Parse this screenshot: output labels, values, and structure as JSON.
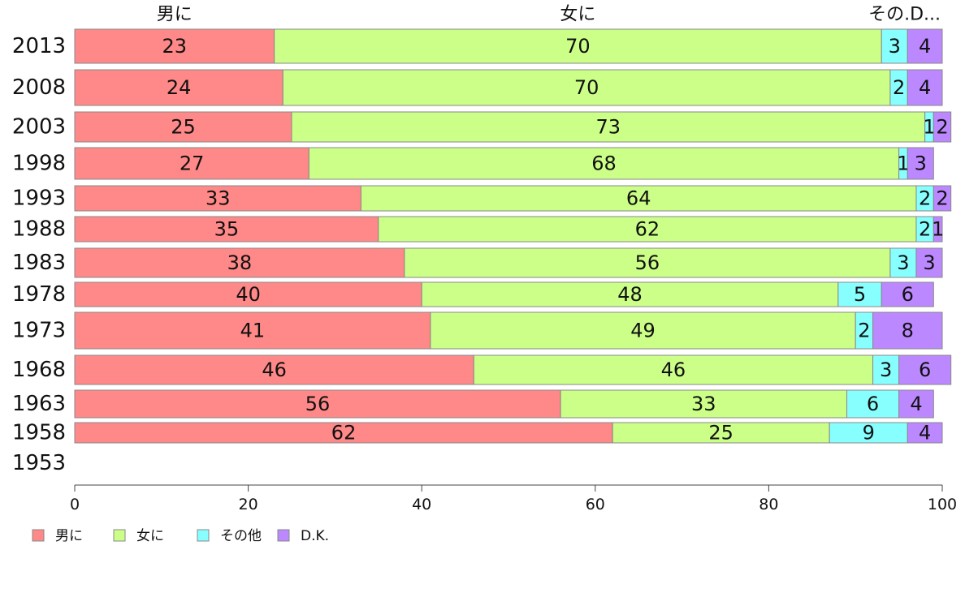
{
  "chart_data": {
    "type": "bar",
    "orientation": "horizontal",
    "stacked": true,
    "categories": [
      "2013",
      "2008",
      "2003",
      "1998",
      "1993",
      "1988",
      "1983",
      "1978",
      "1973",
      "1968",
      "1963",
      "1958",
      "1953"
    ],
    "series": [
      {
        "name": "男に",
        "color": "#ff8888",
        "values": [
          23,
          24,
          25,
          27,
          33,
          35,
          38,
          40,
          41,
          46,
          56,
          62,
          null
        ]
      },
      {
        "name": "女に",
        "color": "#ccff88",
        "values": [
          70,
          70,
          73,
          68,
          64,
          62,
          56,
          48,
          49,
          46,
          33,
          25,
          null
        ]
      },
      {
        "name": "その他",
        "color": "#88ffff",
        "values": [
          3,
          2,
          1,
          1,
          2,
          2,
          3,
          5,
          2,
          3,
          6,
          9,
          null
        ]
      },
      {
        "name": "D.K.",
        "color": "#bb88ff",
        "values": [
          4,
          4,
          2,
          3,
          2,
          1,
          3,
          6,
          8,
          6,
          4,
          4,
          null
        ]
      }
    ],
    "top_labels": [
      "男に",
      "女に",
      "その.D..."
    ],
    "xlim": [
      0,
      100
    ],
    "xticks": [
      "0",
      "20",
      "40",
      "60",
      "80",
      "100"
    ],
    "legend_position": "bottom-left",
    "grid": false
  }
}
